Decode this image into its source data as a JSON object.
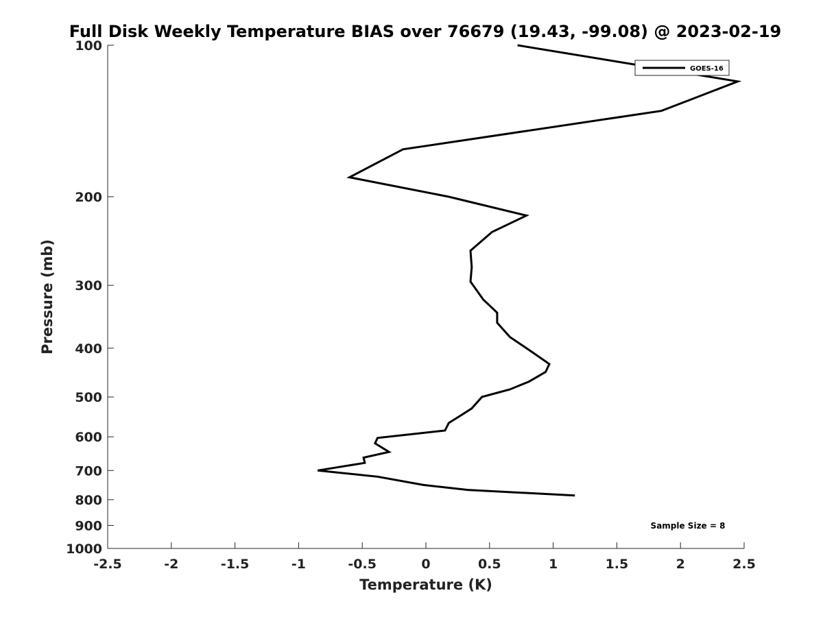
{
  "chart_data": {
    "type": "line",
    "title": "Full Disk Weekly Temperature BIAS over 76679 (19.43, -99.08) @ 2023-02-19",
    "xlabel": "Temperature (K)",
    "ylabel": "Pressure (mb)",
    "xlim": [
      -2.5,
      2.5
    ],
    "ylim": [
      1000,
      100
    ],
    "y_scale": "log",
    "y_reversed": true,
    "grid": false,
    "x_ticks": [
      -2.5,
      -2,
      -1.5,
      -1,
      -0.5,
      0,
      0.5,
      1,
      1.5,
      2,
      2.5
    ],
    "x_tick_labels": [
      "-2.5",
      "-2",
      "-1.5",
      "-1",
      "-0.5",
      "0",
      "0.5",
      "1",
      "1.5",
      "2",
      "2.5"
    ],
    "y_ticks": [
      100,
      200,
      300,
      400,
      500,
      600,
      700,
      800,
      900,
      1000
    ],
    "y_tick_labels": [
      "100",
      "200",
      "300",
      "400",
      "500",
      "600",
      "700",
      "800",
      "900",
      "1000"
    ],
    "legend": {
      "placement": "top-right",
      "entries": [
        "GOES-16"
      ]
    },
    "annotation": "Sample Size = 8",
    "series": [
      {
        "name": "GOES-16",
        "color": "#000000",
        "points": [
          [
            0.72,
            100
          ],
          [
            2.45,
            118
          ],
          [
            1.85,
            135
          ],
          [
            -0.18,
            161
          ],
          [
            -0.6,
            183
          ],
          [
            0.18,
            200
          ],
          [
            0.79,
            218
          ],
          [
            0.52,
            235
          ],
          [
            0.35,
            256
          ],
          [
            0.36,
            276
          ],
          [
            0.35,
            295
          ],
          [
            0.45,
            320
          ],
          [
            0.56,
            340
          ],
          [
            0.56,
            356
          ],
          [
            0.66,
            380
          ],
          [
            0.84,
            408
          ],
          [
            0.97,
            430
          ],
          [
            0.94,
            446
          ],
          [
            0.81,
            466
          ],
          [
            0.66,
            483
          ],
          [
            0.44,
            500
          ],
          [
            0.36,
            527
          ],
          [
            0.27,
            545
          ],
          [
            0.18,
            563
          ],
          [
            0.15,
            583
          ],
          [
            -0.38,
            603
          ],
          [
            -0.4,
            618
          ],
          [
            -0.29,
            643
          ],
          [
            -0.49,
            660
          ],
          [
            -0.48,
            676
          ],
          [
            -0.85,
            700
          ],
          [
            -0.38,
            720
          ],
          [
            -0.02,
            748
          ],
          [
            0.33,
            765
          ],
          [
            1.17,
            785
          ]
        ]
      }
    ]
  }
}
